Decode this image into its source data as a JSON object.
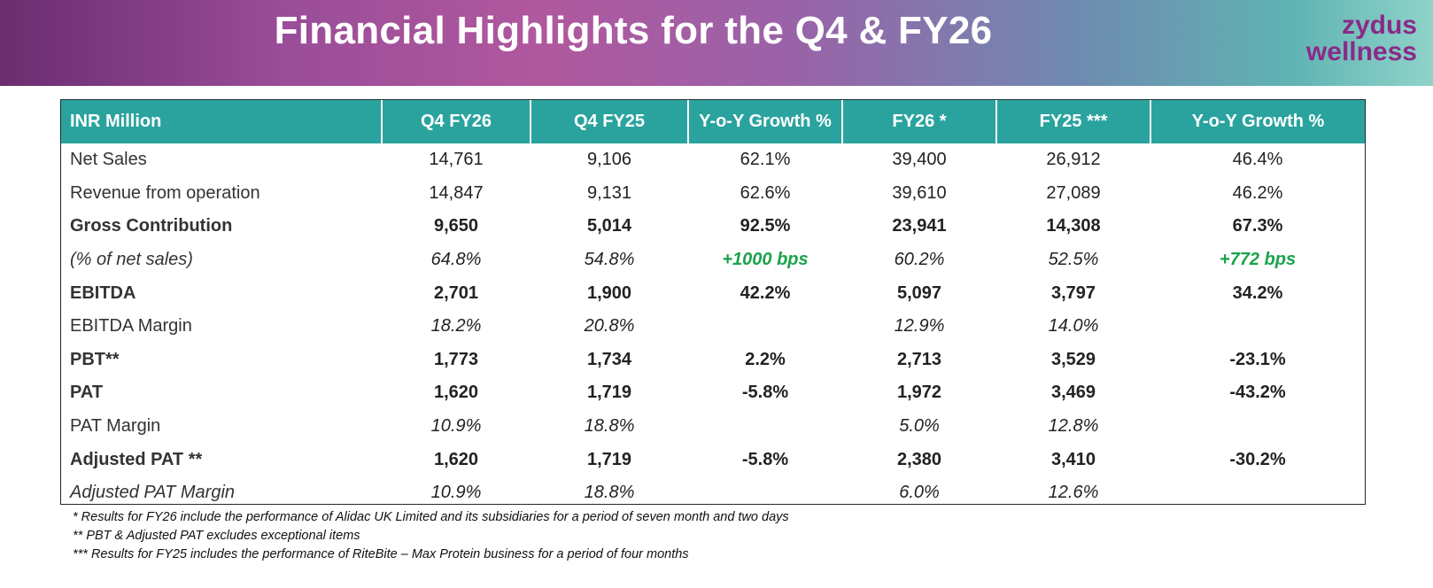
{
  "title": "Financial Highlights for the Q4 & FY26",
  "logo": {
    "line1": "zydus",
    "line2": "wellness"
  },
  "table": {
    "headers": [
      "INR Million",
      "Q4 FY26",
      "Q4 FY25",
      "Y-o-Y Growth %",
      "FY26 *",
      "FY25 ***",
      "Y-o-Y Growth %"
    ],
    "rows": [
      {
        "label": "Net Sales",
        "cells": [
          "14,761",
          "9,106",
          "62.1%",
          "39,400",
          "26,912",
          "46.4%"
        ]
      },
      {
        "label": "Revenue from operation",
        "cells": [
          "14,847",
          "9,131",
          "62.6%",
          "39,610",
          "27,089",
          "46.2%"
        ]
      },
      {
        "label": "Gross Contribution",
        "cells": [
          "9,650",
          "5,014",
          "92.5%",
          "23,941",
          "14,308",
          "67.3%"
        ]
      },
      {
        "label": "(% of net sales)",
        "cells": [
          "64.8%",
          "54.8%",
          "+1000 bps",
          "60.2%",
          "52.5%",
          "+772 bps"
        ]
      },
      {
        "label": "EBITDA",
        "cells": [
          "2,701",
          "1,900",
          "42.2%",
          "5,097",
          "3,797",
          "34.2%"
        ]
      },
      {
        "label": "EBITDA Margin",
        "cells": [
          "18.2%",
          "20.8%",
          "",
          "12.9%",
          "14.0%",
          ""
        ]
      },
      {
        "label": "PBT**",
        "cells": [
          "1,773",
          "1,734",
          "2.2%",
          "2,713",
          "3,529",
          "-23.1%"
        ]
      },
      {
        "label": "PAT",
        "cells": [
          "1,620",
          "1,719",
          "-5.8%",
          "1,972",
          "3,469",
          "-43.2%"
        ]
      },
      {
        "label": "PAT Margin",
        "cells": [
          "10.9%",
          "18.8%",
          "",
          "5.0%",
          "12.8%",
          ""
        ]
      },
      {
        "label": "Adjusted PAT **",
        "cells": [
          "1,620",
          "1,719",
          "-5.8%",
          "2,380",
          "3,410",
          "-30.2%"
        ]
      },
      {
        "label": "Adjusted PAT Margin",
        "cells": [
          "10.9%",
          "18.8%",
          "",
          "6.0%",
          "12.6%",
          ""
        ]
      }
    ]
  },
  "colors": {
    "header_teal": "#2aa39e",
    "bps_green": "#1aa34a",
    "brand_purple": "#8b2a88"
  },
  "footnotes": [
    "* Results for FY26 include the performance of Alidac UK Limited and its subsidiaries for a period of seven month and two days",
    "** PBT & Adjusted PAT excludes exceptional items",
    "*** Results for FY25 includes the performance of RiteBite – Max Protein business for a period of four months"
  ]
}
